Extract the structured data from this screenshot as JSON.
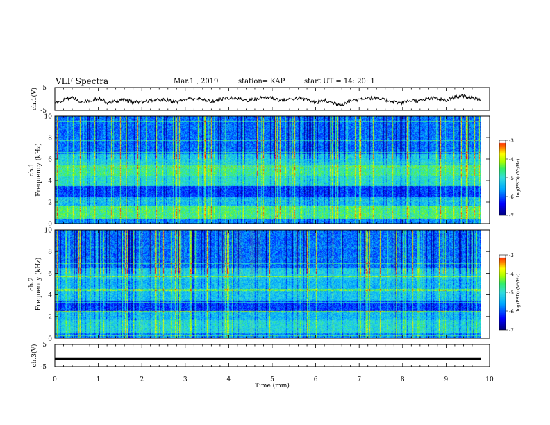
{
  "header": {
    "title": "VLF Spectra",
    "date": "Mar.1 , 2019",
    "station": "station= KAP",
    "start": "start UT = 14: 20: 1"
  },
  "colors": {
    "colormap": [
      "#00007f",
      "#0000ff",
      "#00aaff",
      "#33dddd",
      "#33ee66",
      "#aaff00",
      "#ffff00",
      "#ff8800",
      "#ff0000",
      "#ffffff"
    ],
    "trace": "#000000"
  },
  "chart_data": [
    {
      "type": "line",
      "name": "ch1-waveform",
      "ylabel": "ch.1(V)",
      "ylim": [
        -5,
        5
      ],
      "y_ticks": [
        "5",
        "-5"
      ],
      "xlim": [
        0,
        10
      ],
      "note_shape": "noisy trace oscillating around -1 V",
      "y_values": [
        -1.5,
        -0.5,
        0.5,
        -1.2,
        -0.8,
        0.4,
        -1.5,
        -1.0,
        -0.3,
        -1.4,
        -1.6,
        -0.8,
        -0.3,
        -0.6,
        -1.3,
        -0.2,
        0.3,
        -0.4,
        -1.2,
        -0.3,
        0.5,
        0.2,
        -0.6,
        -0.3,
        0.8,
        0.5,
        -0.6,
        -0.1,
        0.4,
        -0.2,
        -1.6,
        -0.6,
        -1.8,
        -2.3,
        -0.8,
        -0.2,
        0.6,
        0.1,
        -0.4,
        -1.1,
        -1.8,
        -0.6,
        -1.0,
        0.2,
        0.3,
        -0.8,
        0.9,
        1.2,
        0.7,
        -0.2
      ]
    },
    {
      "type": "heatmap",
      "name": "ch1-spectrogram",
      "ylabel": "ch.1\nFrequency (kHz)",
      "xlim": [
        0,
        10
      ],
      "ylim": [
        0,
        10
      ],
      "y_ticks": [
        "0",
        "2",
        "4",
        "6",
        "8",
        "10"
      ],
      "colorbar": {
        "label": "log(PSD) (V²/Hz)",
        "range": [
          -7,
          -3
        ],
        "ticks": [
          "-3",
          "-4",
          "-5",
          "-6",
          "-7"
        ]
      }
    },
    {
      "type": "heatmap",
      "name": "ch2-spectrogram",
      "ylabel": "ch.2\nFrequency (kHz)",
      "xlim": [
        0,
        10
      ],
      "ylim": [
        0,
        10
      ],
      "y_ticks": [
        "0",
        "2",
        "4",
        "6",
        "8",
        "10"
      ],
      "colorbar": {
        "label": "log(PSD) (V²/Hz)",
        "range": [
          -7,
          -3
        ],
        "ticks": [
          "-3",
          "-4",
          "-5",
          "-6",
          "-7"
        ]
      }
    },
    {
      "type": "line",
      "name": "ch3-waveform",
      "ylabel": "ch.3(V)",
      "ylim": [
        -5,
        5
      ],
      "y_ticks": [
        "5",
        "-5"
      ],
      "xlim": [
        0,
        10
      ],
      "note_shape": "flat line at about -1.5 V",
      "y_constant": -1.5
    }
  ],
  "x_axis": {
    "label": "Time (min)",
    "ticks": [
      "0",
      "1",
      "2",
      "3",
      "4",
      "5",
      "6",
      "7",
      "8",
      "9",
      "10"
    ]
  }
}
